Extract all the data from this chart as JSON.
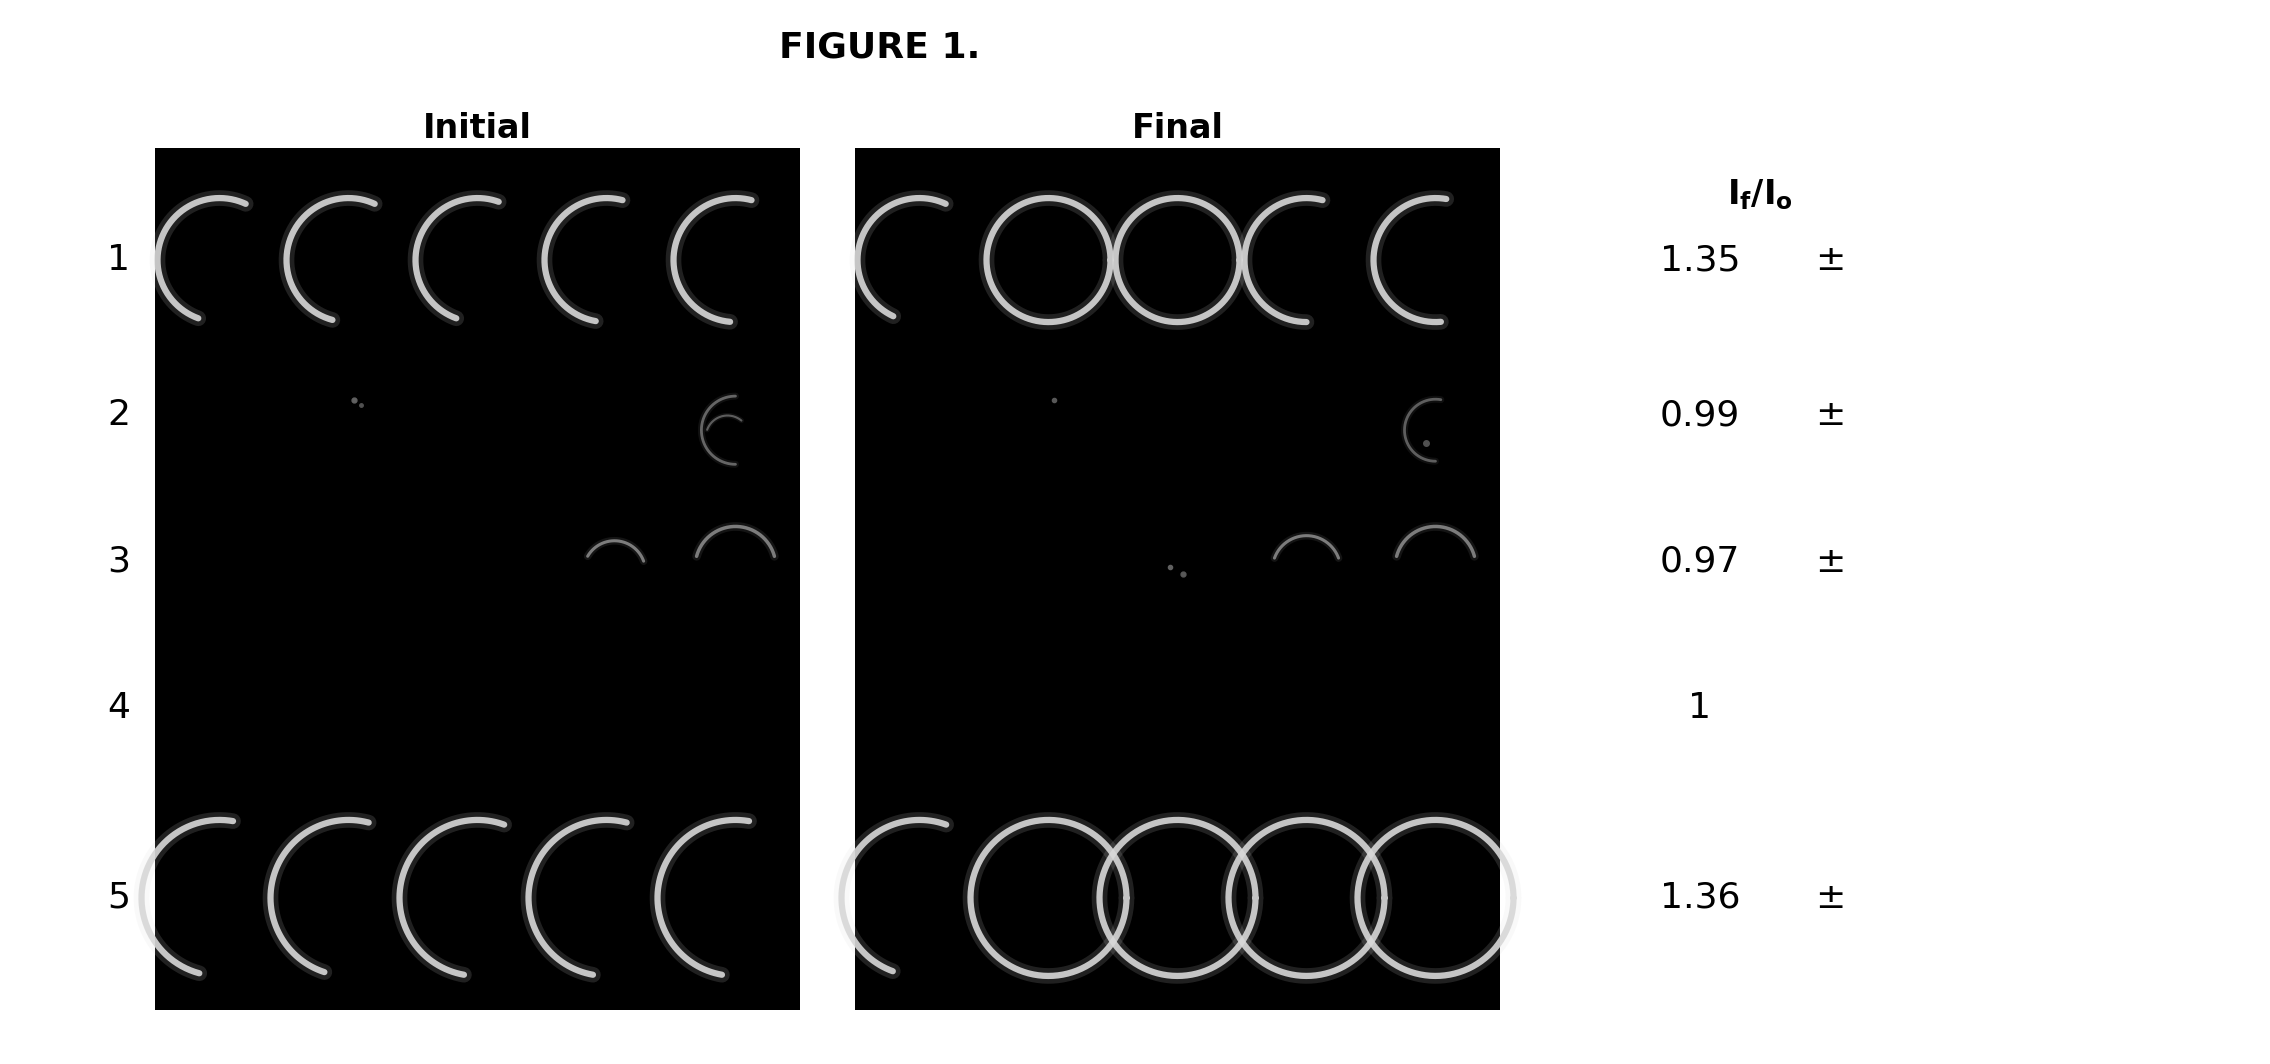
{
  "title": "FIGURE 1.",
  "title_fontsize": 26,
  "title_fontweight": "bold",
  "bg_color": "#ffffff",
  "panel_bg": "#000000",
  "label_initial": "Initial",
  "label_final": "Final",
  "label_fontsize": 24,
  "header_fontsize": 24,
  "row_label_fontsize": 26,
  "ratio_fontsize": 26,
  "row_labels": [
    "1",
    "2",
    "3",
    "4",
    "5"
  ],
  "ratio_values": [
    "1.35",
    "0.99",
    "0.97",
    "1",
    "1.36"
  ],
  "ratio_pm": [
    true,
    true,
    true,
    false,
    true
  ],
  "ring_color_bright": "#d8d8d8",
  "ring_color_dim": "#888888",
  "ring_color_very_dim": "#555555"
}
